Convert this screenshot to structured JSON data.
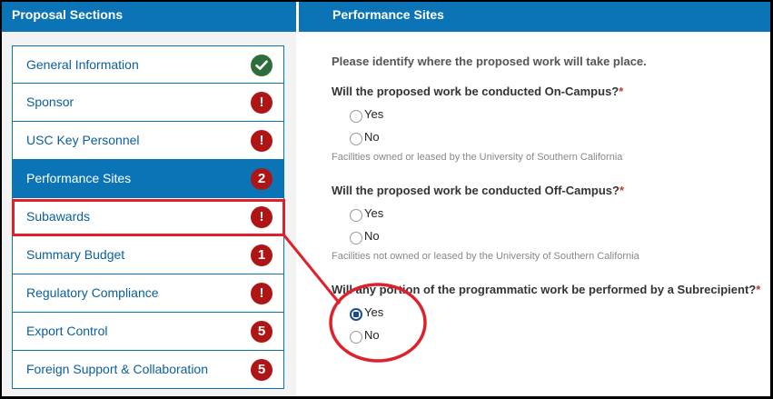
{
  "left_panel": {
    "title": "Proposal Sections"
  },
  "right_panel": {
    "title": "Performance Sites"
  },
  "nav": {
    "items": [
      {
        "label": "General Information",
        "badge": "check",
        "status": "complete"
      },
      {
        "label": "Sponsor",
        "badge": "!",
        "status": "error"
      },
      {
        "label": "USC Key Personnel",
        "badge": "!",
        "status": "error"
      },
      {
        "label": "Performance Sites",
        "badge": "2",
        "status": "active"
      },
      {
        "label": "Subawards",
        "badge": "!",
        "status": "error"
      },
      {
        "label": "Summary Budget",
        "badge": "1",
        "status": "error"
      },
      {
        "label": "Regulatory Compliance",
        "badge": "!",
        "status": "error"
      },
      {
        "label": "Export Control",
        "badge": "5",
        "status": "error"
      },
      {
        "label": "Foreign Support & Collaboration",
        "badge": "5",
        "status": "error"
      }
    ]
  },
  "form": {
    "intro": "Please identify where the proposed work will take place.",
    "q1": {
      "text": "Will the proposed work be conducted On-Campus?",
      "required": "*",
      "yes": "Yes",
      "no": "No",
      "selected": "none",
      "help": "Facilities owned or leased by the University of Southern California"
    },
    "q2": {
      "text": "Will the proposed work be conducted Off-Campus?",
      "required": "*",
      "yes": "Yes",
      "no": "No",
      "selected": "none",
      "help": "Facilities not owned or leased by the University of Southern California"
    },
    "q3": {
      "text": "Will any portion of the programmatic work be performed by a Subrecipient?",
      "required": "*",
      "yes": "Yes",
      "no": "No",
      "selected": "Yes"
    }
  },
  "colors": {
    "header_blue": "#0a74b6",
    "error_red": "#b01515",
    "ok_green": "#2d6e3a",
    "annotation_red": "#e0202a"
  }
}
